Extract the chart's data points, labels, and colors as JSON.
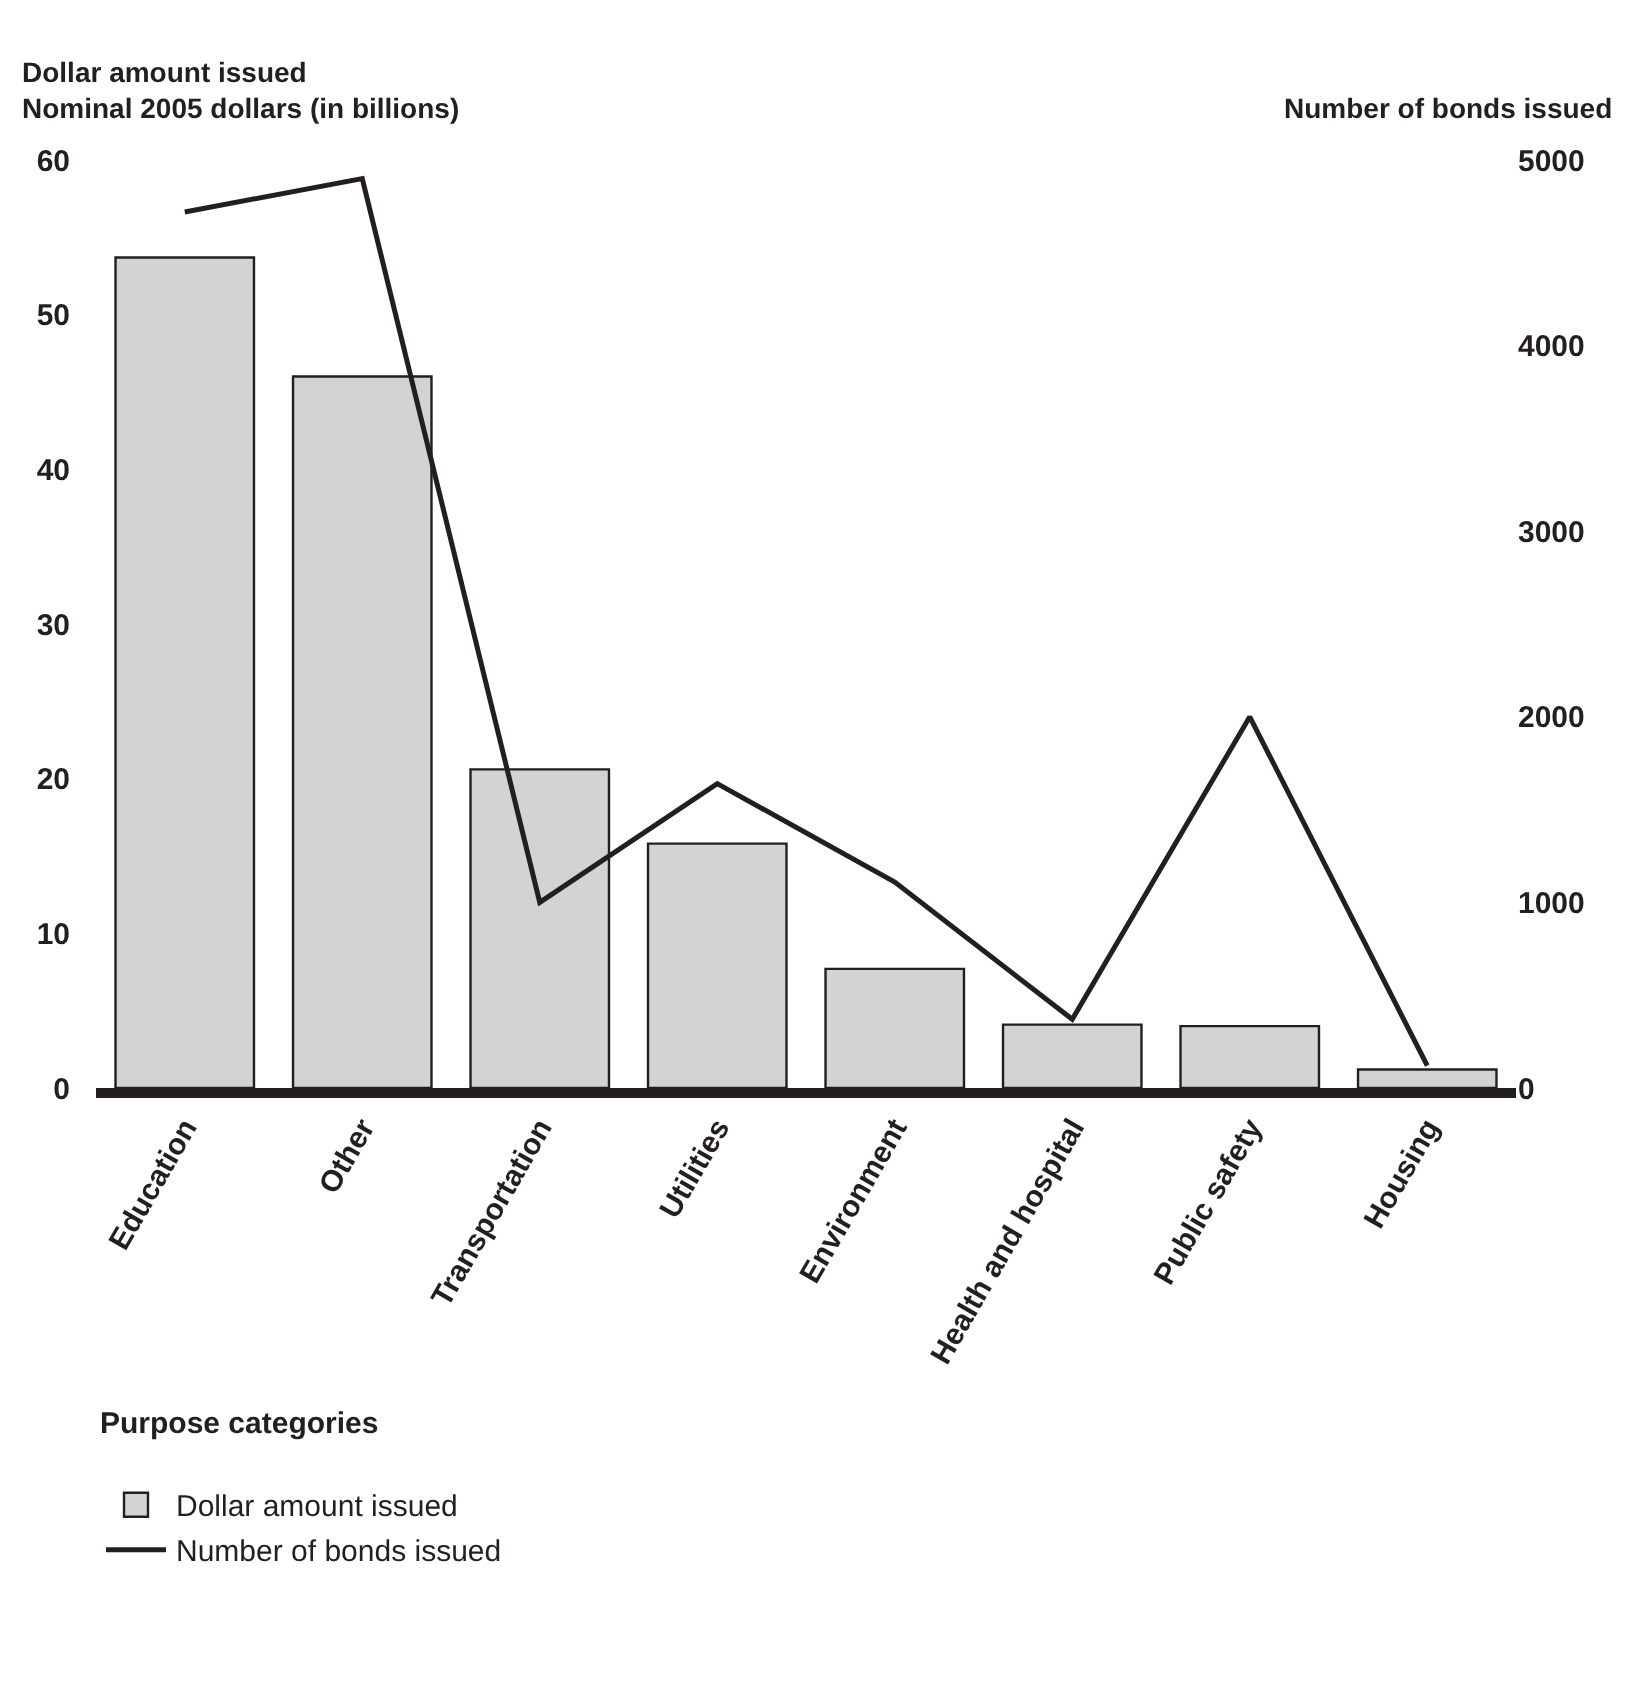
{
  "chart_data": {
    "type": "bar",
    "ylabel": "Dollar amount issued\nNominal 2005 dollars (in billions)",
    "y2label": "Number of bonds issued",
    "legend_title": "Purpose categories",
    "categories": [
      "Education",
      "Other",
      "Transportation",
      "Utilities",
      "Environment",
      "Health and hospital",
      "Public safety",
      "Housing"
    ],
    "series": [
      {
        "name": "Dollar amount issued",
        "color": "#d1d3d4",
        "values": [
          53.7,
          46.0,
          20.6,
          15.8,
          7.7,
          4.1,
          4.0,
          1.2
        ]
      },
      {
        "name": "Number of bonds issued",
        "type": "line",
        "axis": "y2",
        "color": "#231f20",
        "marker": "none",
        "line_style": "solid",
        "values": [
          4720,
          4900,
          1000,
          1640,
          1110,
          370,
          2000,
          120
        ]
      }
    ],
    "ylim": [
      0,
      60
    ],
    "yticks": [
      0,
      10,
      20,
      30,
      40,
      50,
      60
    ],
    "y2lim": [
      0,
      5000
    ],
    "y2ticks": [
      0,
      1000,
      2000,
      3000,
      4000,
      5000
    ],
    "grid": false,
    "legend": "bottom left"
  }
}
